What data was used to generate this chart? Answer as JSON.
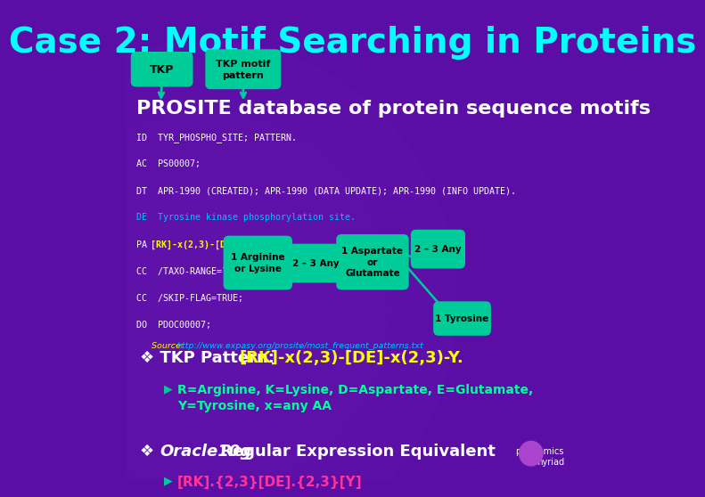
{
  "bg_color": "#5B0EA6",
  "title": "Case 2: Motif Searching in Proteins",
  "title_color": "#00FFFF",
  "title_fontsize": 28,
  "subtitle": "PROSITE database of protein sequence motifs",
  "subtitle_color": "#FFFFFF",
  "subtitle_fontsize": 16,
  "source_color": "#FFFF00",
  "source_url_color": "#00BFFF",
  "callout_color": "#00CC99",
  "bullet1_prefix": "❖ TKP Pattern: ",
  "bullet1_pattern": "[RK]-x(2,3)-[DE]-x(2,3)-Y.",
  "bullet1_prefix_color": "#FFFFFF",
  "bullet1_pattern_color": "#FFFF00",
  "bullet1_fontsize": 13,
  "sub_bullet1": "R=Arginine, K=Lysine, D=Aspartate, E=Glutamate,\nY=Tyrosine, x=any AA",
  "sub_bullet1_color": "#00FF99",
  "bullet2_italic": "Oracle10g",
  "bullet2_rest": " Regular Expression Equivalent",
  "bullet2_color": "#FFFFFF",
  "bullet2_fontsize": 13,
  "sub_bullet2": "[RK].{2,3}[DE].{2,3}[Y]",
  "sub_bullet2_color": "#FF3399",
  "logo_text": "proteomics\nmyriad",
  "logo_color": "#FFFFFF"
}
